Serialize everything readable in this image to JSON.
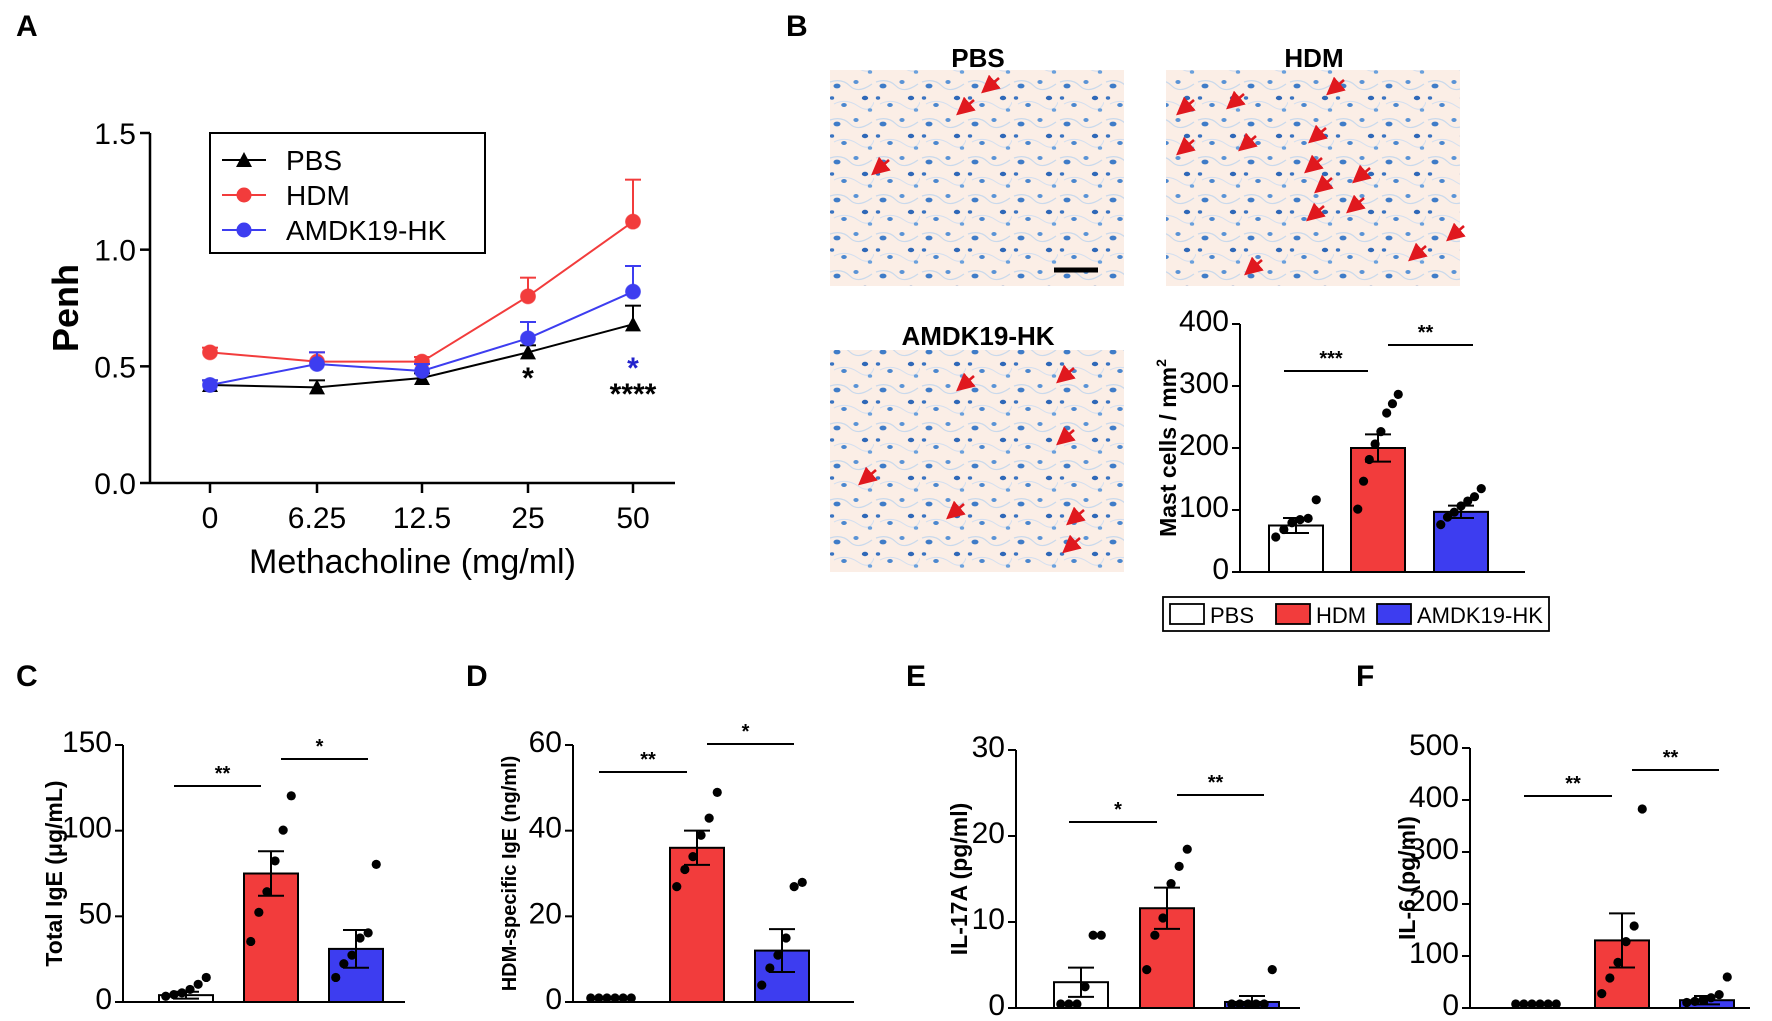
{
  "panel_labels": {
    "a": "A",
    "b": "B",
    "c": "C",
    "d": "D",
    "e": "E",
    "f": "F"
  },
  "colors": {
    "PBS": "#ffffff",
    "HDM": "#f23c3c",
    "AMDK19-HK": "#3d3df0",
    "line_PBS": "#000000",
    "axis": "#000000",
    "sig_blue": "#2222cc"
  },
  "micrographs": {
    "pbs": "PBS",
    "hdm": "HDM",
    "amdk": "AMDK19-HK"
  },
  "legend_b": [
    "PBS",
    "HDM",
    "AMDK19-HK"
  ],
  "chart_data": [
    {
      "id": "A",
      "type": "line",
      "xlabel": "Methacholine (mg/ml)",
      "ylabel": "Penh",
      "categories": [
        "0",
        "6.25",
        "12.5",
        "25",
        "50"
      ],
      "ylim": [
        0,
        1.5
      ],
      "yticks": [
        "0.0",
        "0.5",
        "1.0",
        "1.5"
      ],
      "series": [
        {
          "name": "PBS",
          "marker": "triangle",
          "values": [
            0.42,
            0.41,
            0.45,
            0.56,
            0.68
          ],
          "err": [
            0.02,
            0.03,
            0.02,
            0.03,
            0.08
          ]
        },
        {
          "name": "HDM",
          "marker": "circle",
          "values": [
            0.56,
            0.52,
            0.52,
            0.8,
            1.12
          ],
          "err": [
            0.02,
            0.04,
            0.02,
            0.08,
            0.18
          ]
        },
        {
          "name": "AMDK19-HK",
          "marker": "circle",
          "values": [
            0.42,
            0.51,
            0.48,
            0.62,
            0.82
          ],
          "err": [
            0.02,
            0.05,
            0.03,
            0.07,
            0.11
          ]
        }
      ],
      "annotations": [
        {
          "text": "*",
          "category": "25",
          "color": "black"
        },
        {
          "text": "*",
          "category": "50",
          "color": "blue"
        },
        {
          "text": "****",
          "category": "50",
          "color": "black"
        }
      ]
    },
    {
      "id": "B",
      "type": "bar",
      "ylabel": "Mast cells / mm",
      "ylabel_sup": "2",
      "categories": [
        "PBS",
        "HDM",
        "AMDK19-HK"
      ],
      "ylim": [
        0,
        400
      ],
      "yticks": [
        "0",
        "100",
        "200",
        "300",
        "400"
      ],
      "values": [
        75,
        200,
        97
      ],
      "err": [
        12,
        22,
        10
      ],
      "points": [
        [
          50,
          62,
          73,
          78,
          80,
          110
        ],
        [
          95,
          140,
          175,
          200,
          220,
          250,
          265,
          280
        ],
        [
          70,
          82,
          90,
          100,
          108,
          115,
          128
        ]
      ],
      "sig": [
        {
          "from": 0,
          "to": 1,
          "text": "***"
        },
        {
          "from": 1,
          "to": 2,
          "text": "**"
        }
      ]
    },
    {
      "id": "C",
      "type": "bar",
      "ylabel": "Total IgE (μg/mL)",
      "categories": [
        "PBS",
        "HDM",
        "AMDK19-HK"
      ],
      "ylim": [
        0,
        150
      ],
      "yticks": [
        "0",
        "50",
        "100",
        "150"
      ],
      "values": [
        4,
        75,
        31
      ],
      "err": [
        2,
        13,
        11
      ],
      "points": [
        [
          1,
          2,
          3,
          5,
          8,
          12
        ],
        [
          33,
          50,
          62,
          80,
          98,
          118
        ],
        [
          12,
          20,
          25,
          35,
          38,
          78
        ]
      ],
      "sig": [
        {
          "from": 0,
          "to": 1,
          "text": "**"
        },
        {
          "from": 1,
          "to": 2,
          "text": "*"
        }
      ]
    },
    {
      "id": "D",
      "type": "bar",
      "ylabel": "HDM-specific IgE (ng/ml)",
      "categories": [
        "PBS",
        "HDM",
        "AMDK19-HK"
      ],
      "ylim": [
        0,
        60
      ],
      "yticks": [
        "0",
        "20",
        "40",
        "60"
      ],
      "values": [
        0,
        36,
        12
      ],
      "err": [
        0,
        4,
        5
      ],
      "points": [
        [
          0,
          0,
          0,
          0,
          0,
          0
        ],
        [
          26,
          30,
          33,
          38,
          42,
          48
        ],
        [
          3,
          7,
          10,
          14,
          26,
          27
        ]
      ],
      "sig": [
        {
          "from": 0,
          "to": 1,
          "text": "**"
        },
        {
          "from": 1,
          "to": 2,
          "text": "*"
        }
      ]
    },
    {
      "id": "E",
      "type": "bar",
      "ylabel": "IL-17A (pg/ml)",
      "categories": [
        "PBS",
        "HDM",
        "AMDK19-HK"
      ],
      "ylim": [
        0,
        30
      ],
      "yticks": [
        "0",
        "10",
        "20",
        "30"
      ],
      "values": [
        3,
        11.6,
        0.7
      ],
      "err": [
        1.7,
        2.4,
        0.7
      ],
      "points": [
        [
          0,
          0,
          0,
          2,
          8,
          8
        ],
        [
          4,
          8,
          10,
          14,
          16,
          18
        ],
        [
          0,
          0,
          0,
          0,
          0,
          4
        ]
      ],
      "sig": [
        {
          "from": 0,
          "to": 1,
          "text": "*"
        },
        {
          "from": 1,
          "to": 2,
          "text": "**"
        }
      ]
    },
    {
      "id": "F",
      "type": "bar",
      "ylabel": "IL-6 (pg/ml)",
      "categories": [
        "PBS",
        "HDM",
        "AMDK19-HK"
      ],
      "ylim": [
        0,
        500
      ],
      "yticks": [
        "0",
        "100",
        "200",
        "300",
        "400",
        "500"
      ],
      "values": [
        0,
        130,
        15
      ],
      "err": [
        0,
        52,
        8
      ],
      "points": [
        [
          0,
          0,
          0,
          0,
          0,
          0
        ],
        [
          20,
          50,
          80,
          120,
          150,
          375
        ],
        [
          3,
          5,
          8,
          12,
          18,
          52
        ]
      ],
      "sig": [
        {
          "from": 0,
          "to": 1,
          "text": "**"
        },
        {
          "from": 1,
          "to": 2,
          "text": "**"
        }
      ]
    }
  ]
}
